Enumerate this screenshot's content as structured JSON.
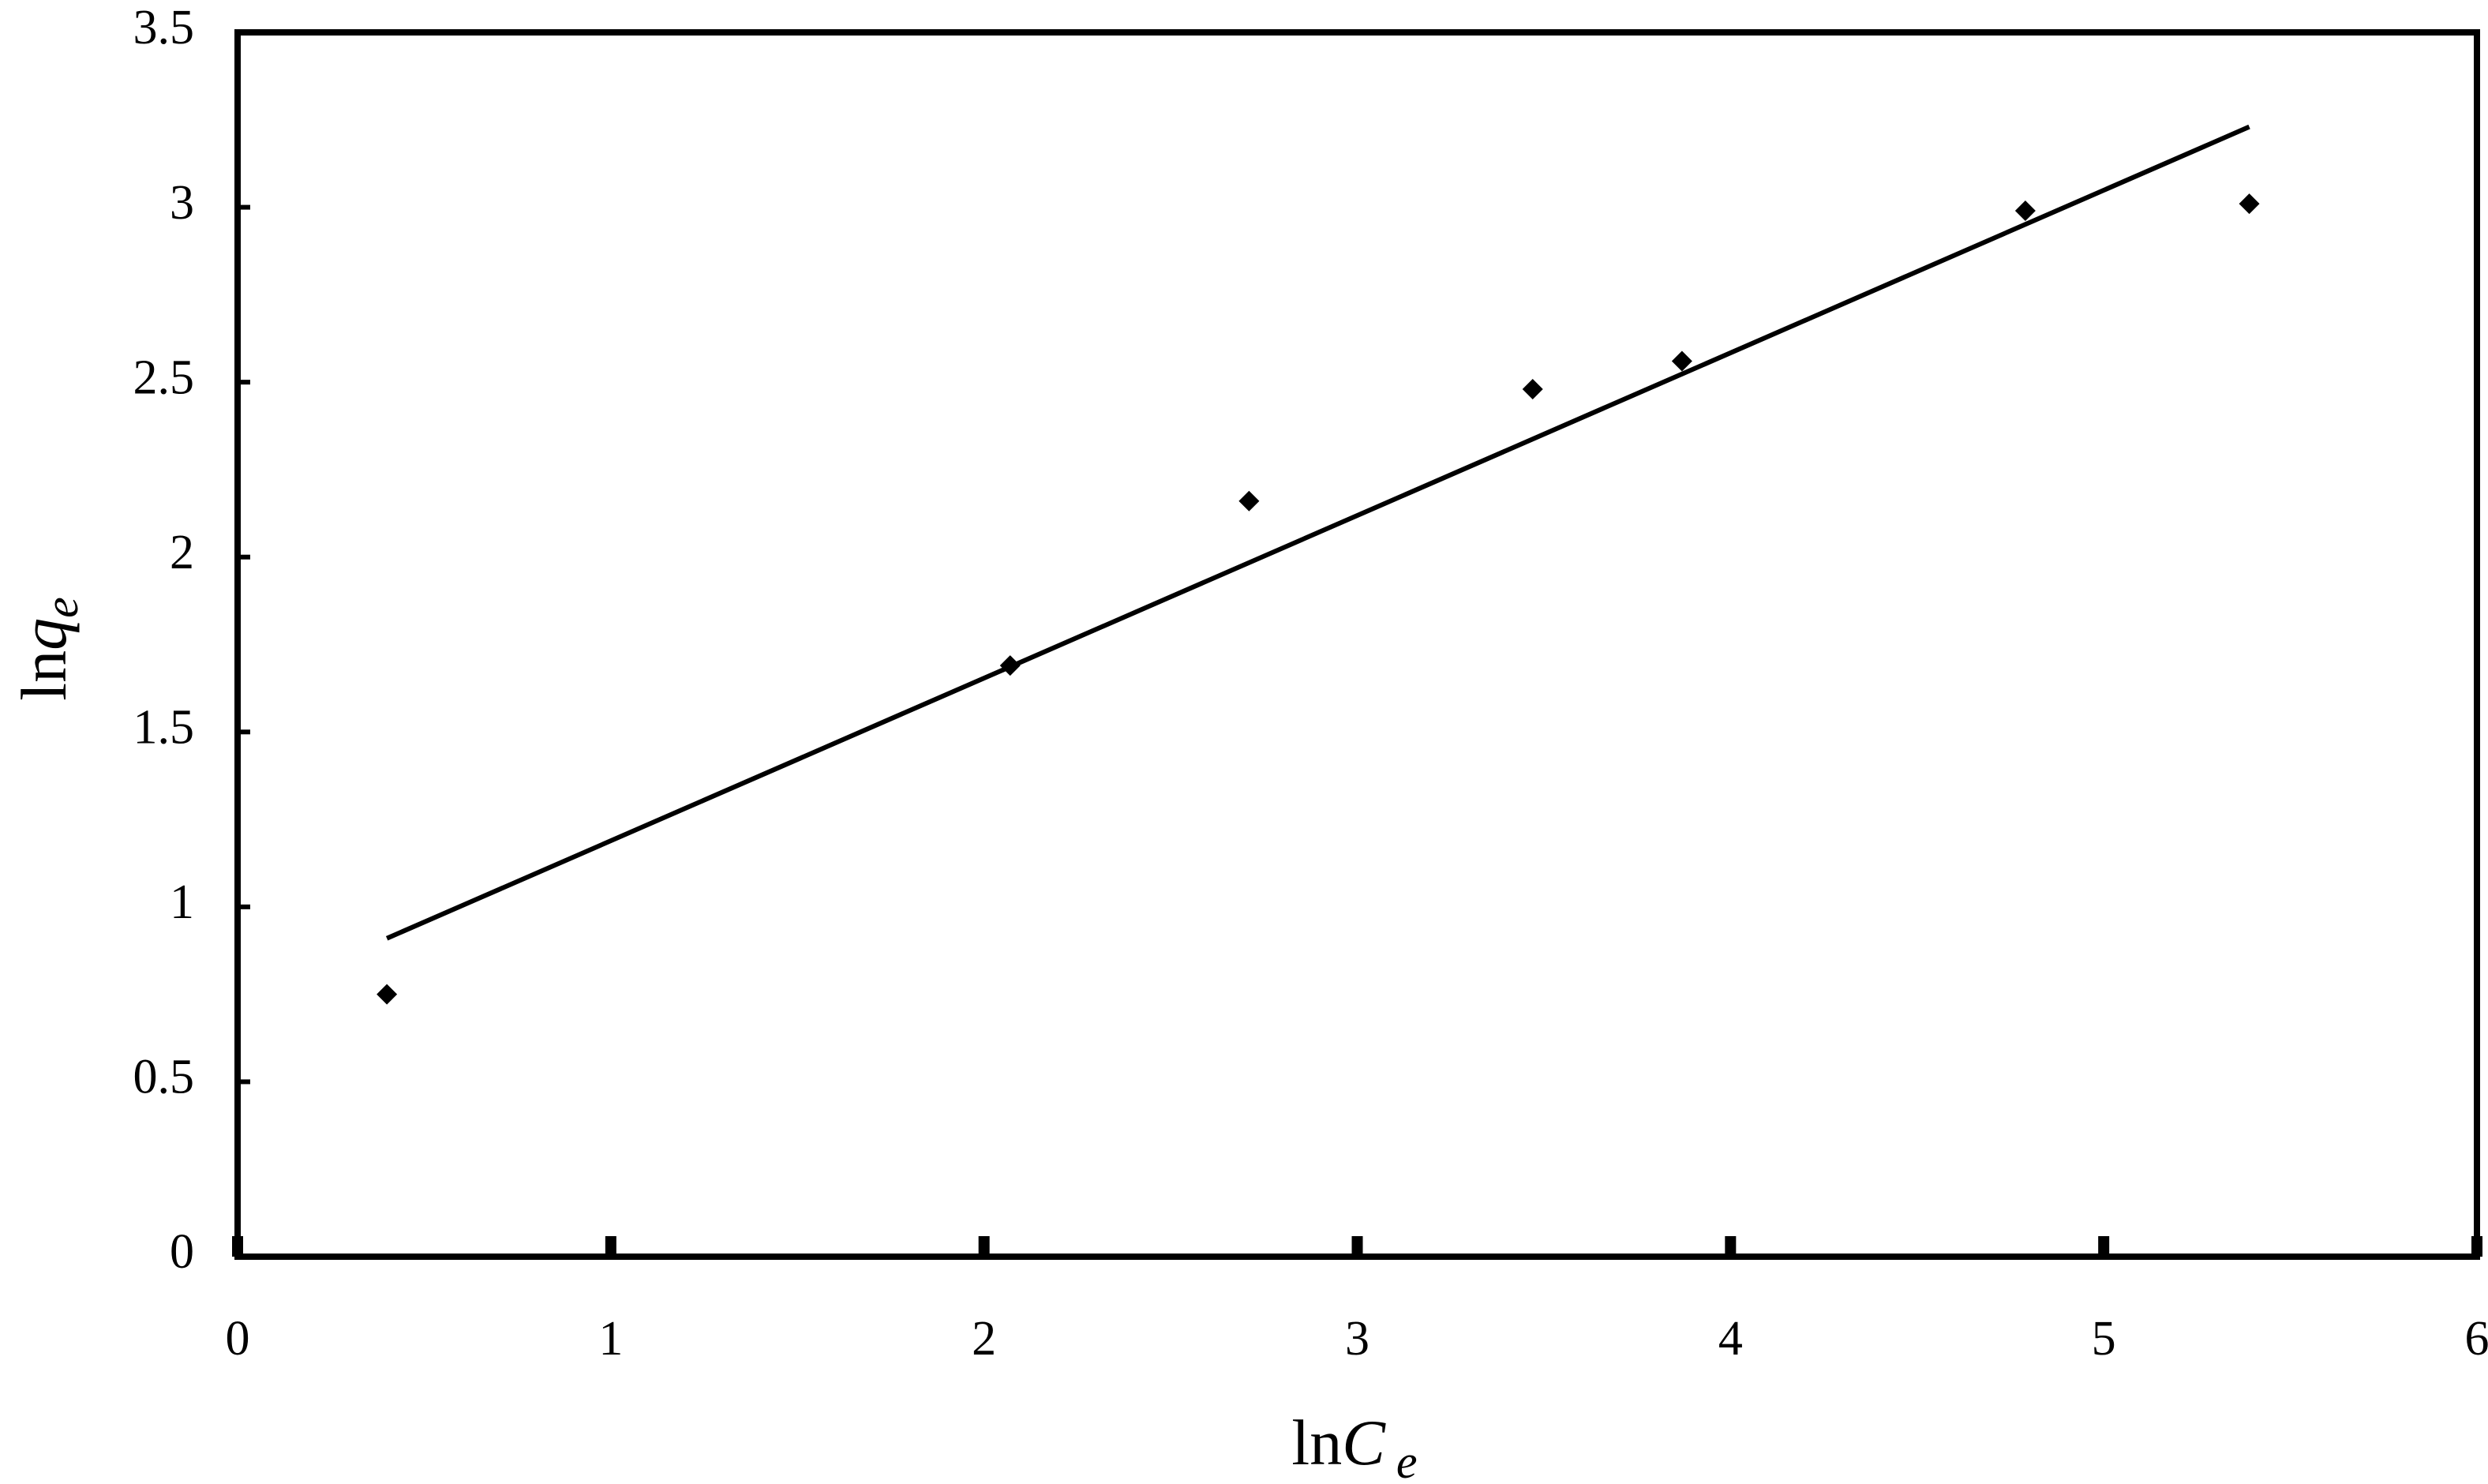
{
  "chart_data": {
    "type": "scatter",
    "xlabel": [
      "ln",
      "C",
      "e"
    ],
    "ylabel": [
      "ln",
      "q",
      "e"
    ],
    "x": [
      0.4,
      2.07,
      2.71,
      3.47,
      3.87,
      4.79,
      5.39
    ],
    "values": [
      0.75,
      1.69,
      2.16,
      2.48,
      2.56,
      2.99,
      3.01
    ],
    "color": "#000000",
    "fit": {
      "x": [
        0.4,
        5.39
      ],
      "values": [
        0.91,
        3.23
      ]
    },
    "xlim": [
      0,
      6
    ],
    "xticks": [
      0,
      1,
      2,
      3,
      4,
      5,
      6
    ],
    "ylim": [
      0,
      3.5
    ],
    "yticks": [
      0,
      0.5,
      1,
      1.5,
      2,
      2.5,
      3,
      3.5
    ],
    "grid": false
  }
}
